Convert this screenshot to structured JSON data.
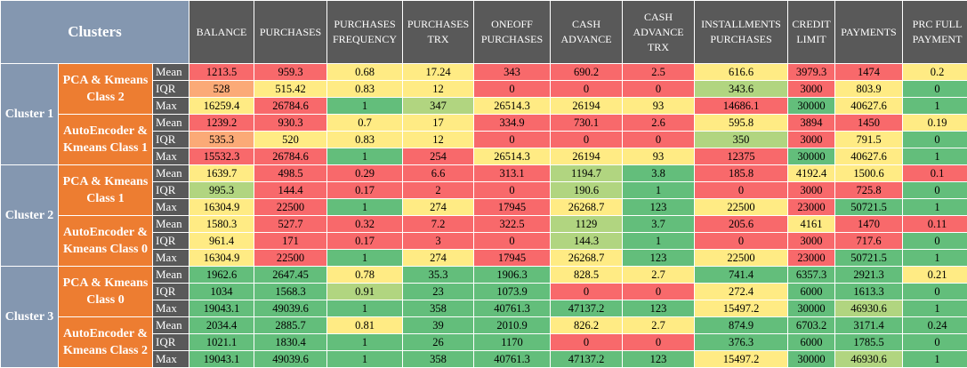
{
  "corner_label": "Clusters",
  "columns": [
    "BALANCE",
    "PURCHASES",
    "PURCHASES FREQUENCY",
    "PURCHASES TRX",
    "ONEOFF PURCHASES",
    "CASH ADVANCE",
    "CASH ADVANCE TRX",
    "INSTALLMENTS PURCHASES",
    "CREDIT LIMIT",
    "PAYMENTS",
    "PRC FULL PAYMENT"
  ],
  "palette": {
    "red": "#f8696b",
    "orange": "#fbaa77",
    "yellow": "#ffeb84",
    "lightgreen": "#b1d580",
    "green": "#63be7b"
  },
  "clusters": [
    {
      "label": "Cluster 1",
      "groups": [
        {
          "method": "PCA & Kmeans Class 2",
          "rows": [
            {
              "stat": "Mean",
              "values": [
                "1213.5",
                "959.3",
                "0.68",
                "17.24",
                "343",
                "690.2",
                "2.5",
                "616.6",
                "3979.3",
                "1474",
                "0.2"
              ],
              "colors": [
                "red",
                "red",
                "yellow",
                "yellow",
                "red",
                "red",
                "red",
                "yellow",
                "red",
                "red",
                "yellow"
              ]
            },
            {
              "stat": "IQR",
              "values": [
                "528",
                "515.42",
                "0.83",
                "12",
                "0",
                "0",
                "0",
                "343.6",
                "3000",
                "803.9",
                "0"
              ],
              "colors": [
                "orange",
                "yellow",
                "yellow",
                "yellow",
                "red",
                "red",
                "red",
                "lightgreen",
                "red",
                "yellow",
                "green"
              ]
            },
            {
              "stat": "Max",
              "values": [
                "16259.4",
                "26784.6",
                "1",
                "347",
                "26514.3",
                "26194",
                "93",
                "14686.1",
                "30000",
                "40627.6",
                "1"
              ],
              "colors": [
                "yellow",
                "red",
                "green",
                "lightgreen",
                "yellow",
                "yellow",
                "yellow",
                "red",
                "green",
                "yellow",
                "green"
              ]
            }
          ]
        },
        {
          "method": "AutoEncoder & Kmeans Class 1",
          "rows": [
            {
              "stat": "Mean",
              "values": [
                "1239.2",
                "930.3",
                "0.7",
                "17",
                "334.9",
                "730.1",
                "2.6",
                "595.8",
                "3894",
                "1450",
                "0.19"
              ],
              "colors": [
                "red",
                "red",
                "yellow",
                "yellow",
                "red",
                "red",
                "red",
                "yellow",
                "red",
                "red",
                "yellow"
              ]
            },
            {
              "stat": "IQR",
              "values": [
                "535.3",
                "520",
                "0.83",
                "12",
                "0",
                "0",
                "0",
                "350",
                "3000",
                "791.5",
                "0"
              ],
              "colors": [
                "orange",
                "yellow",
                "yellow",
                "yellow",
                "red",
                "red",
                "red",
                "lightgreen",
                "red",
                "yellow",
                "green"
              ]
            },
            {
              "stat": "Max",
              "values": [
                "15532.3",
                "26784.6",
                "1",
                "254",
                "26514.3",
                "26194",
                "93",
                "12375",
                "30000",
                "40627.6",
                "1"
              ],
              "colors": [
                "red",
                "red",
                "green",
                "red",
                "yellow",
                "yellow",
                "yellow",
                "red",
                "green",
                "yellow",
                "green"
              ]
            }
          ]
        }
      ]
    },
    {
      "label": "Cluster 2",
      "groups": [
        {
          "method": "PCA & Kmeans Class 1",
          "rows": [
            {
              "stat": "Mean",
              "values": [
                "1639.7",
                "498.5",
                "0.29",
                "6.6",
                "313.1",
                "1194.7",
                "3.8",
                "185.8",
                "4192.4",
                "1500.6",
                "0.1"
              ],
              "colors": [
                "yellow",
                "red",
                "red",
                "red",
                "red",
                "lightgreen",
                "green",
                "red",
                "yellow",
                "yellow",
                "red"
              ]
            },
            {
              "stat": "IQR",
              "values": [
                "995.3",
                "144.4",
                "0.17",
                "2",
                "0",
                "190.6",
                "1",
                "0",
                "3000",
                "725.8",
                "0"
              ],
              "colors": [
                "lightgreen",
                "red",
                "red",
                "red",
                "red",
                "lightgreen",
                "green",
                "red",
                "red",
                "red",
                "green"
              ]
            },
            {
              "stat": "Max",
              "values": [
                "16304.9",
                "22500",
                "1",
                "274",
                "17945",
                "26268.7",
                "123",
                "22500",
                "23000",
                "50721.5",
                "1"
              ],
              "colors": [
                "yellow",
                "red",
                "green",
                "yellow",
                "red",
                "yellow",
                "green",
                "yellow",
                "red",
                "green",
                "green"
              ]
            }
          ]
        },
        {
          "method": "AutoEncoder & Kmeans Class 0",
          "rows": [
            {
              "stat": "Mean",
              "values": [
                "1580.3",
                "527.7",
                "0.32",
                "7.2",
                "322.5",
                "1129",
                "3.7",
                "205.6",
                "4161",
                "1470",
                "0.11"
              ],
              "colors": [
                "yellow",
                "red",
                "red",
                "red",
                "red",
                "lightgreen",
                "green",
                "red",
                "yellow",
                "red",
                "red"
              ]
            },
            {
              "stat": "IQR",
              "values": [
                "961.4",
                "171",
                "0.17",
                "3",
                "0",
                "144.3",
                "1",
                "0",
                "3000",
                "717.6",
                "0"
              ],
              "colors": [
                "yellow",
                "red",
                "red",
                "red",
                "red",
                "lightgreen",
                "green",
                "red",
                "red",
                "red",
                "green"
              ]
            },
            {
              "stat": "Max",
              "values": [
                "16304.9",
                "22500",
                "1",
                "274",
                "17945",
                "26268.7",
                "123",
                "22500",
                "23000",
                "50721.5",
                "1"
              ],
              "colors": [
                "yellow",
                "red",
                "green",
                "yellow",
                "red",
                "yellow",
                "green",
                "yellow",
                "red",
                "green",
                "green"
              ]
            }
          ]
        }
      ]
    },
    {
      "label": "Cluster 3",
      "groups": [
        {
          "method": "PCA & Kmeans Class 0",
          "rows": [
            {
              "stat": "Mean",
              "values": [
                "1962.6",
                "2647.45",
                "0.78",
                "35.3",
                "1906.3",
                "828.5",
                "2.7",
                "741.4",
                "6357.3",
                "2921.3",
                "0.21"
              ],
              "colors": [
                "green",
                "green",
                "yellow",
                "green",
                "green",
                "yellow",
                "yellow",
                "green",
                "green",
                "green",
                "yellow"
              ]
            },
            {
              "stat": "IQR",
              "values": [
                "1034",
                "1568.3",
                "0.91",
                "23",
                "1073.9",
                "0",
                "0",
                "272.4",
                "6000",
                "1613.3",
                "0"
              ],
              "colors": [
                "green",
                "green",
                "lightgreen",
                "green",
                "green",
                "red",
                "red",
                "yellow",
                "green",
                "green",
                "green"
              ]
            },
            {
              "stat": "Max",
              "values": [
                "19043.1",
                "49039.6",
                "1",
                "358",
                "40761.3",
                "47137.2",
                "123",
                "15497.2",
                "30000",
                "46930.6",
                "1"
              ],
              "colors": [
                "green",
                "green",
                "green",
                "green",
                "green",
                "green",
                "green",
                "yellow",
                "green",
                "lightgreen",
                "green"
              ]
            }
          ]
        },
        {
          "method": "AutoEncoder & Kmeans Class 2",
          "rows": [
            {
              "stat": "Mean",
              "values": [
                "2034.4",
                "2885.7",
                "0.81",
                "39",
                "2010.9",
                "826.2",
                "2.7",
                "874.9",
                "6703.2",
                "3171.4",
                "0.24"
              ],
              "colors": [
                "green",
                "green",
                "yellow",
                "green",
                "green",
                "yellow",
                "yellow",
                "green",
                "green",
                "green",
                "green"
              ]
            },
            {
              "stat": "IQR",
              "values": [
                "1021.1",
                "1830.4",
                "1",
                "26",
                "1170",
                "0",
                "0",
                "376.3",
                "6000",
                "1785.5",
                "0"
              ],
              "colors": [
                "green",
                "green",
                "green",
                "green",
                "green",
                "red",
                "red",
                "green",
                "green",
                "green",
                "green"
              ]
            },
            {
              "stat": "Max",
              "values": [
                "19043.1",
                "49039.6",
                "1",
                "358",
                "40761.3",
                "47137.2",
                "123",
                "15497.2",
                "30000",
                "46930.6",
                "1"
              ],
              "colors": [
                "green",
                "green",
                "green",
                "green",
                "green",
                "green",
                "green",
                "yellow",
                "green",
                "lightgreen",
                "green"
              ]
            }
          ]
        }
      ]
    }
  ]
}
